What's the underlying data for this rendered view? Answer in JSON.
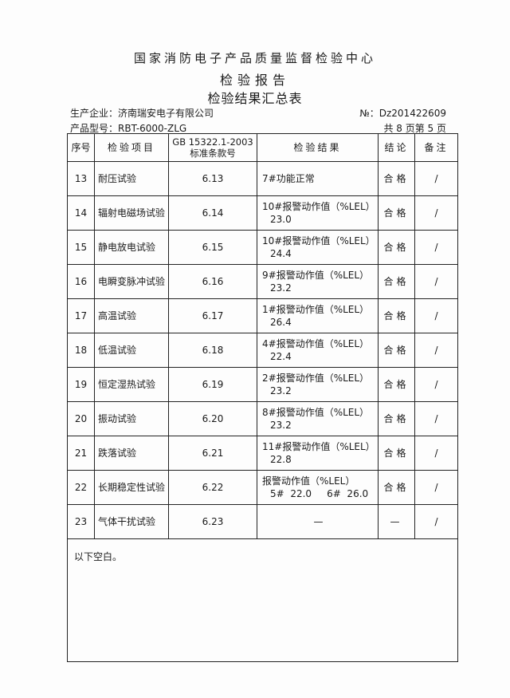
{
  "header": {
    "org": "国家消防电子产品质量监督检验中心",
    "title": "检验报告",
    "subtitle": "检验结果汇总表",
    "company_label": "生产企业：",
    "company": "济南瑞安电子有限公司",
    "model_label": "产品型号：",
    "model": "RBT-6000-ZLG",
    "report_no": "№：Dz201422609",
    "page_info": "共 8 页第 5 页"
  },
  "table": {
    "columns": [
      "序号",
      "检验项目",
      "GB 15322.1-2003 标准条款号",
      "检验结果",
      "结论",
      "备注"
    ],
    "rows": [
      {
        "no": "13",
        "item": "耐压试验",
        "clause": "6.13",
        "result": "7#功能正常",
        "value": "",
        "conclusion": "合格",
        "note": "/"
      },
      {
        "no": "14",
        "item": "辐射电磁场试验",
        "clause": "6.14",
        "result": "10#报警动作值（%LEL）",
        "value": "23.0",
        "conclusion": "合格",
        "note": "/"
      },
      {
        "no": "15",
        "item": "静电放电试验",
        "clause": "6.15",
        "result": "10#报警动作值（%LEL）",
        "value": "24.4",
        "conclusion": "合格",
        "note": "/"
      },
      {
        "no": "16",
        "item": "电瞬变脉冲试验",
        "clause": "6.16",
        "result": "9#报警动作值（%LEL）",
        "value": "23.2",
        "conclusion": "合格",
        "note": "/"
      },
      {
        "no": "17",
        "item": "高温试验",
        "clause": "6.17",
        "result": "1#报警动作值（%LEL）",
        "value": "26.4",
        "conclusion": "合格",
        "note": "/"
      },
      {
        "no": "18",
        "item": "低温试验",
        "clause": "6.18",
        "result": "4#报警动作值（%LEL）",
        "value": "22.4",
        "conclusion": "合格",
        "note": "/"
      },
      {
        "no": "19",
        "item": "恒定湿热试验",
        "clause": "6.19",
        "result": "2#报警动作值（%LEL）",
        "value": "23.2",
        "conclusion": "合格",
        "note": "/"
      },
      {
        "no": "20",
        "item": "振动试验",
        "clause": "6.20",
        "result": "8#报警动作值（%LEL）",
        "value": "23.2",
        "conclusion": "合格",
        "note": "/"
      },
      {
        "no": "21",
        "item": "跌落试验",
        "clause": "6.21",
        "result": "11#报警动作值（%LEL）",
        "value": "22.8",
        "conclusion": "合格",
        "note": "/"
      },
      {
        "no": "22",
        "item": "长期稳定性试验",
        "clause": "6.22",
        "result": "报警动作值（%LEL）",
        "value": "5#  22.0     6#  26.0",
        "conclusion": "合格",
        "note": "/"
      },
      {
        "no": "23",
        "item": "气体干扰试验",
        "clause": "6.23",
        "result": "—",
        "value": "",
        "conclusion": "—",
        "note": "/"
      }
    ],
    "footer_note": "以下空白。"
  }
}
